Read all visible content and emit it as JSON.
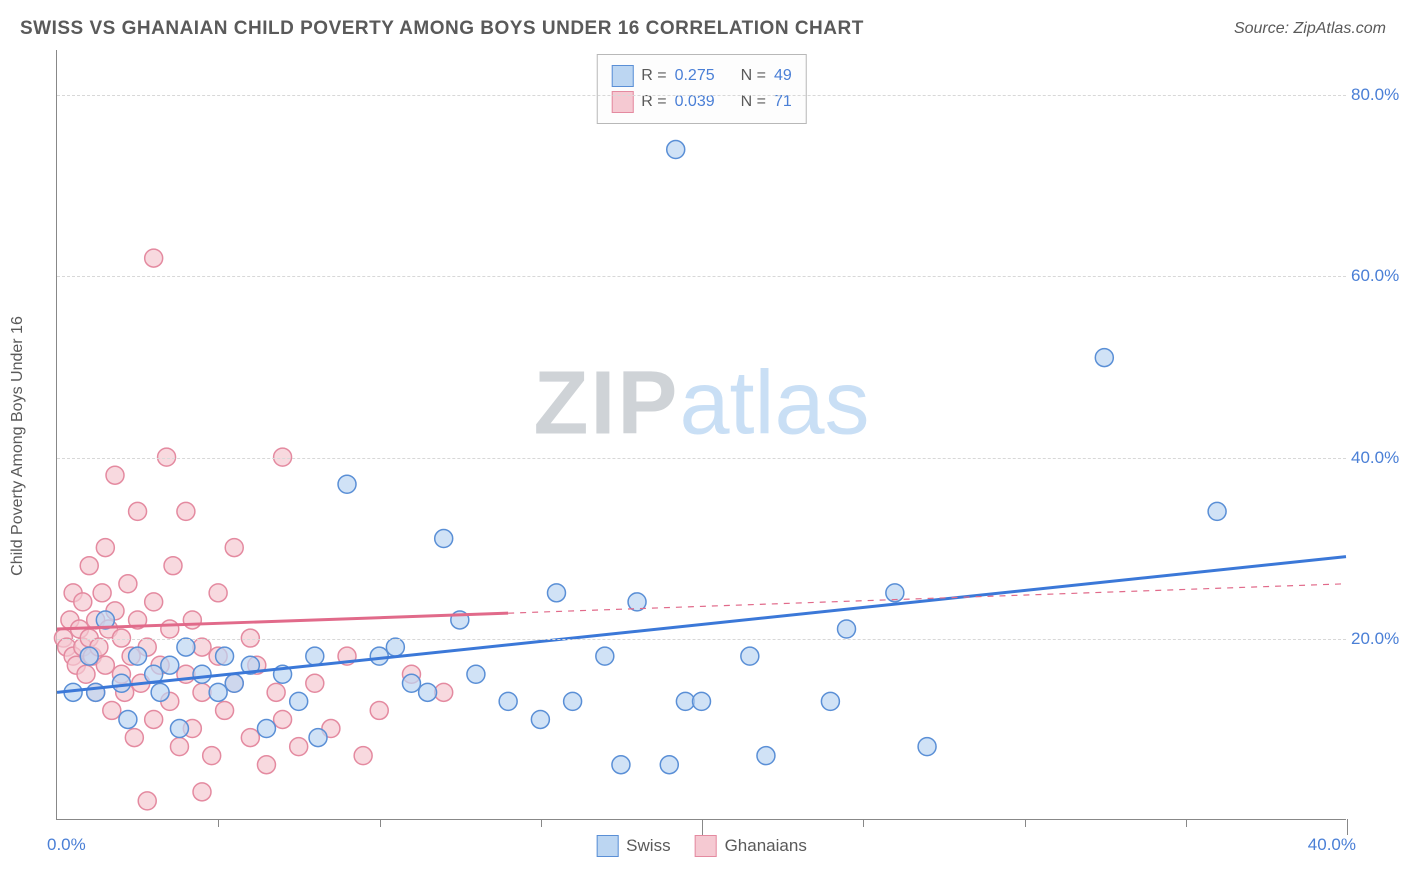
{
  "title": "SWISS VS GHANAIAN CHILD POVERTY AMONG BOYS UNDER 16 CORRELATION CHART",
  "source_prefix": "Source: ",
  "source_name": "ZipAtlas.com",
  "y_axis_title": "Child Poverty Among Boys Under 16",
  "watermark": {
    "zip": "ZIP",
    "atlas": "atlas"
  },
  "chart": {
    "type": "scatter",
    "background_color": "#ffffff",
    "grid_color": "#d8d8d8",
    "axis_color": "#888888",
    "xlim": [
      0,
      40
    ],
    "ylim": [
      0,
      85
    ],
    "x_tick_labels": {
      "left": "0.0%",
      "right": "40.0%"
    },
    "x_minor_ticks": [
      5,
      10,
      15,
      25,
      30,
      35
    ],
    "x_major_ticks": [
      20,
      40
    ],
    "y_ticks": [
      {
        "value": 20,
        "label": "20.0%"
      },
      {
        "value": 40,
        "label": "40.0%"
      },
      {
        "value": 60,
        "label": "60.0%"
      },
      {
        "value": 80,
        "label": "80.0%"
      }
    ],
    "marker_radius": 9,
    "marker_stroke_width": 1.5,
    "line_width_solid": 3,
    "line_width_dashed": 1.2,
    "series": [
      {
        "name": "Swiss",
        "color_fill": "#bcd6f2",
        "color_stroke": "#5a8fd6",
        "line_color": "#3b78d8",
        "stats": {
          "R": "0.275",
          "N": "49"
        },
        "trend": {
          "x1": 0,
          "y1": 14,
          "x2": 40,
          "y2": 29,
          "dashed_from_x": null
        },
        "points": [
          [
            0.5,
            14
          ],
          [
            1.0,
            18
          ],
          [
            1.2,
            14
          ],
          [
            1.5,
            22
          ],
          [
            2.0,
            15
          ],
          [
            2.2,
            11
          ],
          [
            2.5,
            18
          ],
          [
            3.0,
            16
          ],
          [
            3.2,
            14
          ],
          [
            3.5,
            17
          ],
          [
            3.8,
            10
          ],
          [
            4.0,
            19
          ],
          [
            4.5,
            16
          ],
          [
            5.0,
            14
          ],
          [
            5.2,
            18
          ],
          [
            5.5,
            15
          ],
          [
            6.0,
            17
          ],
          [
            6.5,
            10
          ],
          [
            7.0,
            16
          ],
          [
            7.5,
            13
          ],
          [
            8.0,
            18
          ],
          [
            8.1,
            9
          ],
          [
            9.0,
            37
          ],
          [
            10.0,
            18
          ],
          [
            10.5,
            19
          ],
          [
            11.0,
            15
          ],
          [
            11.5,
            14
          ],
          [
            12.0,
            31
          ],
          [
            12.5,
            22
          ],
          [
            13.0,
            16
          ],
          [
            14.0,
            13
          ],
          [
            15.0,
            11
          ],
          [
            15.5,
            25
          ],
          [
            16.0,
            13
          ],
          [
            17.0,
            18
          ],
          [
            17.5,
            6
          ],
          [
            18.0,
            24
          ],
          [
            19.0,
            6
          ],
          [
            19.5,
            13
          ],
          [
            20.0,
            13
          ],
          [
            21.5,
            18
          ],
          [
            22.0,
            7
          ],
          [
            24.0,
            13
          ],
          [
            24.5,
            21
          ],
          [
            26.0,
            25
          ],
          [
            27.0,
            8
          ],
          [
            32.5,
            51
          ],
          [
            36.0,
            34
          ],
          [
            19.2,
            74
          ]
        ]
      },
      {
        "name": "Ghanaians",
        "color_fill": "#f5c9d2",
        "color_stroke": "#e48aa0",
        "line_color": "#e16a8a",
        "stats": {
          "R": "0.039",
          "N": "71"
        },
        "trend": {
          "x1": 0,
          "y1": 21,
          "x2": 40,
          "y2": 26,
          "dashed_from_x": 14
        },
        "points": [
          [
            0.2,
            20
          ],
          [
            0.3,
            19
          ],
          [
            0.4,
            22
          ],
          [
            0.5,
            18
          ],
          [
            0.5,
            25
          ],
          [
            0.6,
            17
          ],
          [
            0.7,
            21
          ],
          [
            0.8,
            19
          ],
          [
            0.8,
            24
          ],
          [
            0.9,
            16
          ],
          [
            1.0,
            20
          ],
          [
            1.0,
            28
          ],
          [
            1.1,
            18
          ],
          [
            1.2,
            22
          ],
          [
            1.2,
            14
          ],
          [
            1.3,
            19
          ],
          [
            1.4,
            25
          ],
          [
            1.5,
            17
          ],
          [
            1.5,
            30
          ],
          [
            1.6,
            21
          ],
          [
            1.7,
            12
          ],
          [
            1.8,
            23
          ],
          [
            1.8,
            38
          ],
          [
            2.0,
            16
          ],
          [
            2.0,
            20
          ],
          [
            2.1,
            14
          ],
          [
            2.2,
            26
          ],
          [
            2.3,
            18
          ],
          [
            2.4,
            9
          ],
          [
            2.5,
            22
          ],
          [
            2.5,
            34
          ],
          [
            2.6,
            15
          ],
          [
            2.8,
            19
          ],
          [
            3.0,
            11
          ],
          [
            3.0,
            24
          ],
          [
            3.2,
            17
          ],
          [
            3.4,
            40
          ],
          [
            3.5,
            13
          ],
          [
            3.5,
            21
          ],
          [
            3.6,
            28
          ],
          [
            3.8,
            8
          ],
          [
            4.0,
            16
          ],
          [
            4.0,
            34
          ],
          [
            4.2,
            10
          ],
          [
            4.2,
            22
          ],
          [
            4.5,
            14
          ],
          [
            4.5,
            19
          ],
          [
            4.8,
            7
          ],
          [
            5.0,
            18
          ],
          [
            5.0,
            25
          ],
          [
            5.2,
            12
          ],
          [
            5.5,
            15
          ],
          [
            5.5,
            30
          ],
          [
            6.0,
            9
          ],
          [
            6.0,
            20
          ],
          [
            6.2,
            17
          ],
          [
            6.5,
            6
          ],
          [
            6.8,
            14
          ],
          [
            7.0,
            11
          ],
          [
            7.0,
            40
          ],
          [
            7.5,
            8
          ],
          [
            8.0,
            15
          ],
          [
            8.5,
            10
          ],
          [
            9.0,
            18
          ],
          [
            9.5,
            7
          ],
          [
            10.0,
            12
          ],
          [
            11.0,
            16
          ],
          [
            12.0,
            14
          ],
          [
            3.0,
            62
          ],
          [
            2.8,
            2
          ],
          [
            4.5,
            3
          ]
        ]
      }
    ]
  },
  "legend_top": {
    "r_label": "R =",
    "n_label": "N ="
  },
  "legend_bottom": [
    {
      "label": "Swiss",
      "fill": "#bcd6f2",
      "stroke": "#5a8fd6"
    },
    {
      "label": "Ghanaians",
      "fill": "#f5c9d2",
      "stroke": "#e48aa0"
    }
  ]
}
